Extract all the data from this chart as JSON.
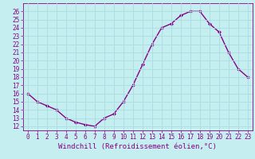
{
  "x": [
    0,
    1,
    2,
    3,
    4,
    5,
    6,
    7,
    8,
    9,
    10,
    11,
    12,
    13,
    14,
    15,
    16,
    17,
    18,
    19,
    20,
    21,
    22,
    23
  ],
  "y": [
    16,
    15,
    14.5,
    14,
    13,
    12.5,
    12.2,
    12,
    13,
    13.5,
    15,
    17,
    19.5,
    22,
    24,
    24.5,
    25.5,
    26,
    26,
    24.5,
    23.5,
    21,
    19,
    18
  ],
  "line_color": "#880088",
  "marker": "D",
  "marker_size": 2,
  "bg_color": "#c5eef0",
  "grid_color": "#aadddd",
  "xlabel": "Windchill (Refroidissement éolien,°C)",
  "xlabel_color": "#880088",
  "xlabel_fontsize": 6.5,
  "tick_color": "#880088",
  "tick_fontsize": 5.5,
  "ylim": [
    11.5,
    27
  ],
  "xlim": [
    -0.5,
    23.5
  ],
  "yticks": [
    12,
    13,
    14,
    15,
    16,
    17,
    18,
    19,
    20,
    21,
    22,
    23,
    24,
    25,
    26
  ],
  "xticks": [
    0,
    1,
    2,
    3,
    4,
    5,
    6,
    7,
    8,
    9,
    10,
    11,
    12,
    13,
    14,
    15,
    16,
    17,
    18,
    19,
    20,
    21,
    22,
    23
  ]
}
